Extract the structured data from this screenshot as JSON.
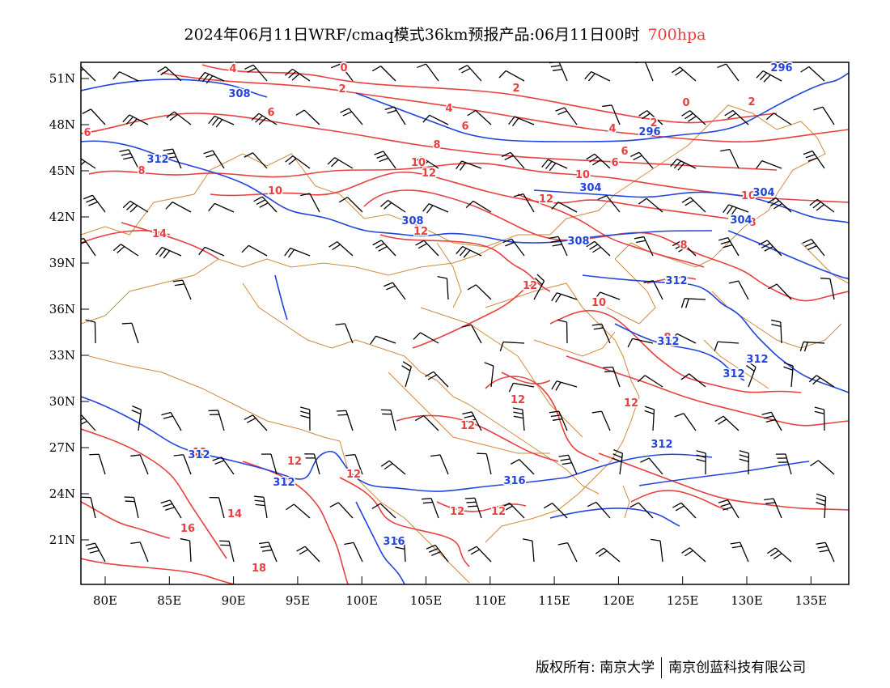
{
  "title": {
    "main": "2024年06月11日WRF/cmaq模式36km预报产品:06月11日00时",
    "level": "700hpa"
  },
  "colors": {
    "temperature": "#e84040",
    "height": "#2244dd",
    "borders": "#d08a3c",
    "wind": "#000000"
  },
  "axes": {
    "lon_ticks": [
      "80E",
      "85E",
      "90E",
      "95E",
      "100E",
      "105E",
      "110E",
      "115E",
      "120E",
      "125E",
      "130E",
      "135E"
    ],
    "lat_ticks": [
      "51N",
      "48N",
      "45N",
      "42N",
      "39N",
      "36N",
      "33N",
      "30N",
      "27N",
      "24N",
      "21N"
    ]
  },
  "contour_labels": {
    "temperature": [
      "0",
      "2",
      "2",
      "4",
      "4",
      "4",
      "2",
      "0",
      "2",
      "6",
      "6",
      "6",
      "6",
      "6",
      "8",
      "8",
      "10",
      "10",
      "10",
      "10",
      "12",
      "12",
      "12",
      "12",
      "12",
      "12",
      "12",
      "12",
      "12",
      "12",
      "12",
      "12",
      "14",
      "14",
      "16",
      "18",
      "8",
      "8",
      "8",
      "10"
    ],
    "height": [
      "296",
      "296",
      "304",
      "304",
      "308",
      "308",
      "308",
      "304",
      "312",
      "312",
      "312",
      "312",
      "312",
      "312",
      "312",
      "312",
      "316",
      "316"
    ]
  },
  "footer": {
    "left": "版权所有: 南京大学",
    "right": "南京创蓝科技有限公司"
  }
}
